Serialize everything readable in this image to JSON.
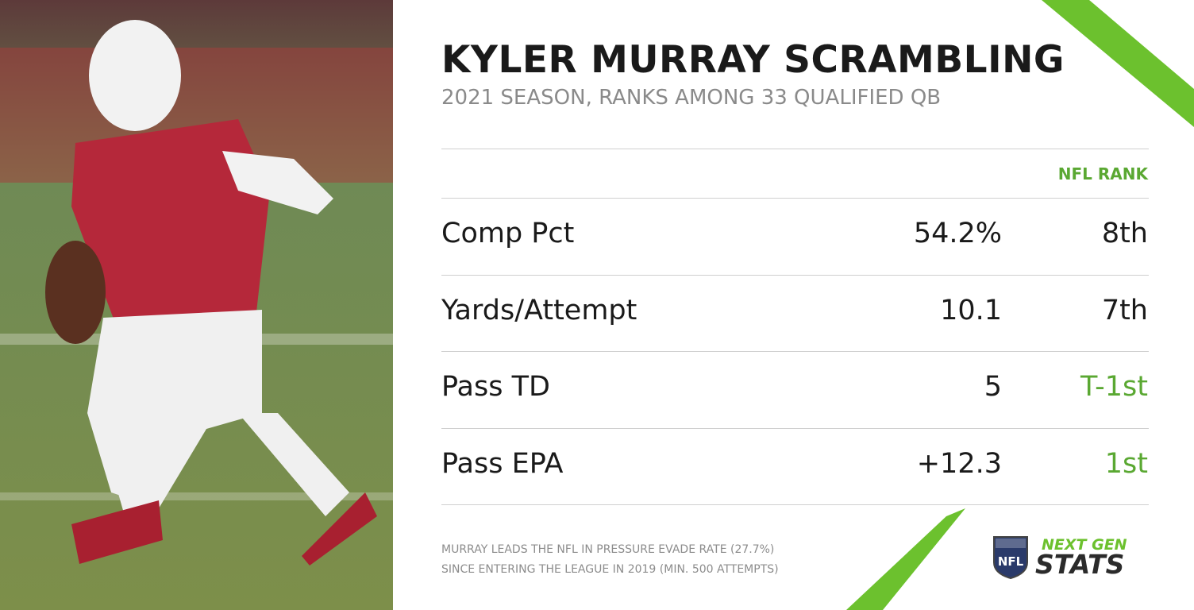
{
  "header": {
    "title": "KYLER MURRAY SCRAMBLING",
    "subtitle": "2021 SEASON, RANKS AMONG 33 QUALIFIED QB"
  },
  "table": {
    "column_header": "NFL RANK",
    "rows": [
      {
        "label": "Comp Pct",
        "value": "54.2%",
        "rank": "8th",
        "highlight": false
      },
      {
        "label": "Yards/Attempt",
        "value": "10.1",
        "rank": "7th",
        "highlight": false
      },
      {
        "label": "Pass TD",
        "value": "5",
        "rank": "T-1st",
        "highlight": true
      },
      {
        "label": "Pass EPA",
        "value": "+12.3",
        "rank": "1st",
        "highlight": true
      }
    ]
  },
  "footnote": [
    "MURRAY LEADS THE NFL IN PRESSURE EVADE RATE (27.7%)",
    "SINCE ENTERING THE LEAGUE IN 2019 (MIN. 500 ATTEMPTS)"
  ],
  "logo": {
    "shield": "NFL",
    "line1": "NEXT GEN",
    "line2": "STATS"
  }
}
